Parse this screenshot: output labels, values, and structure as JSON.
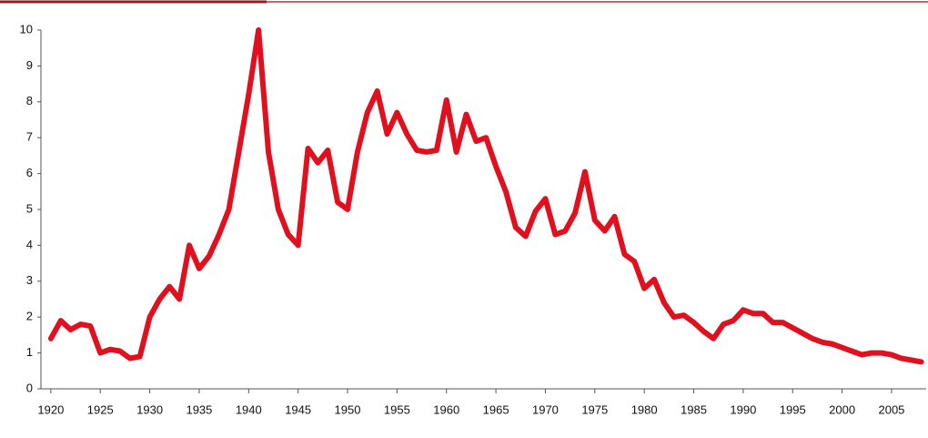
{
  "chart_data": {
    "type": "line",
    "x": [
      1920,
      1921,
      1922,
      1923,
      1924,
      1925,
      1926,
      1927,
      1928,
      1929,
      1930,
      1931,
      1932,
      1933,
      1934,
      1935,
      1936,
      1937,
      1938,
      1939,
      1940,
      1941,
      1942,
      1943,
      1944,
      1945,
      1946,
      1947,
      1948,
      1949,
      1950,
      1951,
      1952,
      1953,
      1954,
      1955,
      1956,
      1957,
      1958,
      1959,
      1960,
      1961,
      1962,
      1963,
      1964,
      1965,
      1966,
      1967,
      1968,
      1969,
      1970,
      1971,
      1972,
      1973,
      1974,
      1975,
      1976,
      1977,
      1978,
      1979,
      1980,
      1981,
      1982,
      1983,
      1984,
      1985,
      1986,
      1987,
      1988,
      1989,
      1990,
      1991,
      1992,
      1993,
      1994,
      1995,
      1996,
      1997,
      1998,
      1999,
      2000,
      2001,
      2002,
      2003,
      2004,
      2005,
      2006,
      2007,
      2008
    ],
    "series": [
      {
        "color": "#e0101e",
        "values": [
          1.4,
          1.9,
          1.65,
          1.8,
          1.75,
          1.0,
          1.1,
          1.05,
          0.85,
          0.9,
          2.0,
          2.5,
          2.85,
          2.5,
          4.0,
          3.35,
          3.7,
          4.3,
          5.0,
          6.6,
          8.2,
          10.0,
          6.6,
          5.0,
          4.3,
          4.0,
          6.7,
          6.3,
          6.65,
          5.2,
          5.0,
          6.6,
          7.7,
          8.3,
          7.1,
          7.7,
          7.1,
          6.65,
          6.6,
          6.65,
          8.05,
          6.6,
          7.65,
          6.9,
          7.0,
          6.2,
          5.5,
          4.5,
          4.25,
          4.95,
          5.3,
          4.3,
          4.4,
          4.9,
          6.05,
          4.7,
          4.4,
          4.8,
          3.75,
          3.55,
          2.8,
          3.05,
          2.4,
          2.0,
          2.05,
          1.85,
          1.6,
          1.4,
          1.8,
          1.9,
          2.2,
          2.1,
          2.1,
          1.85,
          1.85,
          1.7,
          1.55,
          1.4,
          1.3,
          1.25,
          1.15,
          1.05,
          0.95,
          1.0,
          1.0,
          0.95,
          0.85,
          0.8,
          0.75
        ]
      }
    ],
    "xlim": [
      1919,
      2008.5
    ],
    "xticks": [
      1920,
      1925,
      1930,
      1935,
      1940,
      1945,
      1950,
      1955,
      1960,
      1965,
      1970,
      1975,
      1980,
      1985,
      1990,
      1995,
      2000,
      2005
    ],
    "ylim": [
      0,
      10
    ],
    "yticks": [
      0,
      1,
      2,
      3,
      4,
      5,
      6,
      7,
      8,
      9,
      10
    ]
  }
}
